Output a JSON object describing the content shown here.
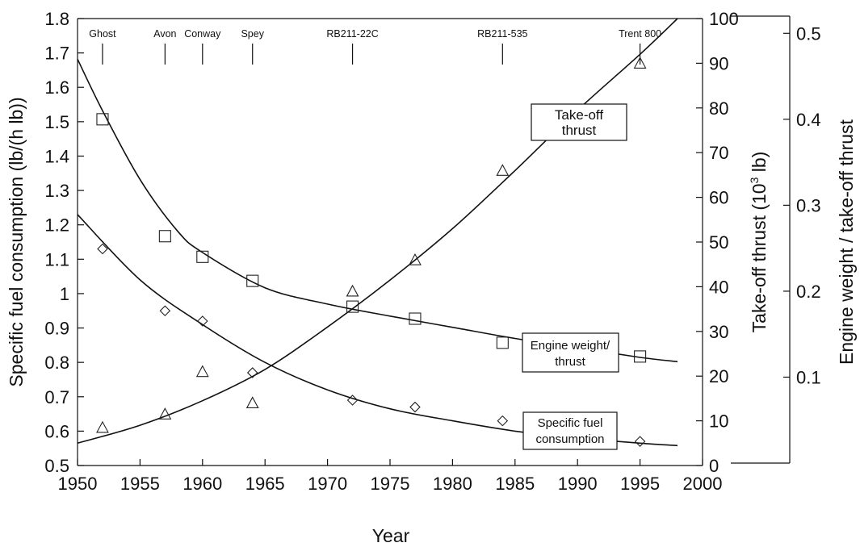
{
  "chart_data": {
    "type": "scatter",
    "xlabel": "Year",
    "ylabel_left": "Specific fuel consumption (lb/(h lb))",
    "ylabel_right1": "Take-off thrust (10",
    "ylabel_right1_sup": "3",
    "ylabel_right1_end": " lb)",
    "ylabel_right2": "Engine weight / take-off thrust",
    "xlim": [
      1950,
      2000
    ],
    "x_ticks": [
      "1950",
      "1955",
      "1960",
      "1965",
      "1970",
      "1975",
      "1980",
      "1985",
      "1990",
      "1995",
      "2000"
    ],
    "y_left_lim": [
      0.5,
      1.8
    ],
    "y_left_ticks": [
      "0.5",
      "0.6",
      "0.7",
      "0.8",
      "0.9",
      "1",
      "1.1",
      "1.2",
      "1.3",
      "1.4",
      "1.5",
      "1.6",
      "1.7",
      "1.8"
    ],
    "y_thrust_lim": [
      0,
      100
    ],
    "y_thrust_ticks": [
      "0",
      "10",
      "20",
      "30",
      "40",
      "50",
      "60",
      "70",
      "80",
      "90",
      "100"
    ],
    "y_weight_lim": [
      0,
      0.52
    ],
    "y_weight_ticks": [
      "0.1",
      "0.2",
      "0.3",
      "0.4",
      "0.5"
    ],
    "engines": [
      {
        "name": "Ghost",
        "year": 1952
      },
      {
        "name": "Avon",
        "year": 1957
      },
      {
        "name": "Conway",
        "year": 1960
      },
      {
        "name": "Spey",
        "year": 1964
      },
      {
        "name": "RB211-22C",
        "year": 1972
      },
      {
        "name": "RB211-535",
        "year": 1984
      },
      {
        "name": "Trent 800",
        "year": 1995
      }
    ],
    "series": [
      {
        "label_lines": [
          "Take-off",
          "thrust"
        ],
        "marker": "triangle",
        "axis": "thrust",
        "points": [
          [
            1952,
            8.5
          ],
          [
            1957,
            11.5
          ],
          [
            1960,
            21
          ],
          [
            1964,
            14
          ],
          [
            1972,
            39
          ],
          [
            1977,
            46
          ],
          [
            1984,
            66
          ],
          [
            1995,
            90
          ]
        ],
        "fit": [
          [
            1950,
            5
          ],
          [
            1955,
            9
          ],
          [
            1960,
            14.5
          ],
          [
            1965,
            21.5
          ],
          [
            1970,
            31
          ],
          [
            1975,
            41.5
          ],
          [
            1980,
            53
          ],
          [
            1985,
            66
          ],
          [
            1990,
            79.5
          ],
          [
            1995,
            92
          ],
          [
            1998,
            100
          ]
        ]
      },
      {
        "label_lines": [
          "Engine weight/",
          "thrust"
        ],
        "marker": "square",
        "axis": "weight",
        "points": [
          [
            1952,
            0.4
          ],
          [
            1957,
            0.264
          ],
          [
            1960,
            0.24
          ],
          [
            1964,
            0.212
          ],
          [
            1972,
            0.182
          ],
          [
            1977,
            0.168
          ],
          [
            1984,
            0.14
          ],
          [
            1995,
            0.124
          ]
        ],
        "fit": [
          [
            1950,
            0.47
          ],
          [
            1952,
            0.41
          ],
          [
            1955,
            0.33
          ],
          [
            1958,
            0.27
          ],
          [
            1960,
            0.245
          ],
          [
            1965,
            0.204
          ],
          [
            1970,
            0.185
          ],
          [
            1975,
            0.171
          ],
          [
            1980,
            0.158
          ],
          [
            1985,
            0.145
          ],
          [
            1990,
            0.134
          ],
          [
            1995,
            0.123
          ],
          [
            1998,
            0.118
          ]
        ]
      },
      {
        "label_lines": [
          "Specific fuel",
          "consumption"
        ],
        "marker": "diamond",
        "axis": "sfc",
        "points": [
          [
            1952,
            1.13
          ],
          [
            1957,
            0.95
          ],
          [
            1960,
            0.92
          ],
          [
            1964,
            0.77
          ],
          [
            1972,
            0.69
          ],
          [
            1977,
            0.67
          ],
          [
            1984,
            0.63
          ],
          [
            1995,
            0.57
          ]
        ],
        "fit": [
          [
            1950,
            1.23
          ],
          [
            1955,
            1.04
          ],
          [
            1960,
            0.91
          ],
          [
            1965,
            0.8
          ],
          [
            1970,
            0.72
          ],
          [
            1975,
            0.665
          ],
          [
            1980,
            0.63
          ],
          [
            1985,
            0.6
          ],
          [
            1990,
            0.58
          ],
          [
            1995,
            0.565
          ],
          [
            1998,
            0.558
          ]
        ]
      }
    ]
  }
}
